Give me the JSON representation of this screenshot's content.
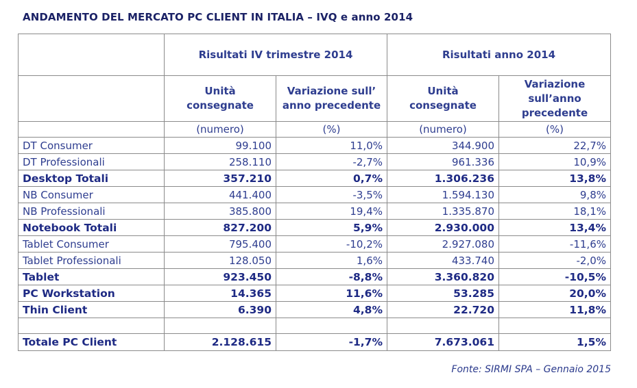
{
  "title": "ANDAMENTO DEL MERCATO PC CLIENT IN ITALIA – IVQ e anno 2014",
  "header": {
    "group_q4": "Risultati IV trimestre 2014",
    "group_year": "Risultati anno 2014",
    "units_label": "Unità consegnate",
    "units_label_2": "Unità consegnate",
    "change_label_q4": "Variazione sull’ anno precedente",
    "change_label_year": "Variazione sull’anno precedente",
    "units_unit": "(numero)",
    "units_unit_2": "(numero)",
    "pct_unit": "(%)",
    "pct_unit_2": "(%)"
  },
  "rows": [
    {
      "label": "DT Consumer",
      "q4_units": "99.100",
      "q4_change": "11,0%",
      "year_units": "344.900",
      "year_change": "22,7%"
    },
    {
      "label": "DT Professionali",
      "q4_units": "258.110",
      "q4_change": "-2,7%",
      "year_units": "961.336",
      "year_change": "10,9%"
    },
    {
      "label": "Desktop Totali",
      "q4_units": "357.210",
      "q4_change": "0,7%",
      "year_units": "1.306.236",
      "year_change": "13,8%"
    },
    {
      "label": "NB Consumer",
      "q4_units": "441.400",
      "q4_change": "-3,5%",
      "year_units": "1.594.130",
      "year_change": "9,8%"
    },
    {
      "label": "NB Professionali",
      "q4_units": "385.800",
      "q4_change": "19,4%",
      "year_units": "1.335.870",
      "year_change": "18,1%"
    },
    {
      "label": "Notebook Totali",
      "q4_units": "827.200",
      "q4_change": "5,9%",
      "year_units": "2.930.000",
      "year_change": "13,4%"
    },
    {
      "label": "Tablet Consumer",
      "q4_units": "795.400",
      "q4_change": "-10,2%",
      "year_units": "2.927.080",
      "year_change": "-11,6%"
    },
    {
      "label": "Tablet Professionali",
      "q4_units": "128.050",
      "q4_change": "1,6%",
      "year_units": "433.740",
      "year_change": "-2,0%"
    },
    {
      "label": "Tablet",
      "q4_units": "923.450",
      "q4_change": "-8,8%",
      "year_units": "3.360.820",
      "year_change": "-10,5%"
    },
    {
      "label": "PC Workstation",
      "q4_units": "14.365",
      "q4_change": "11,6%",
      "year_units": "53.285",
      "year_change": "20,0%"
    },
    {
      "label": "Thin Client",
      "q4_units": "6.390",
      "q4_change": "4,8%",
      "year_units": "22.720",
      "year_change": "11,8%"
    }
  ],
  "total": {
    "label": "Totale PC Client",
    "q4_units": "2.128.615",
    "q4_change": "-1,7%",
    "year_units": "7.673.061",
    "year_change": "1,5%"
  },
  "source": "Fonte: SIRMI SPA – Gennaio 2015"
}
